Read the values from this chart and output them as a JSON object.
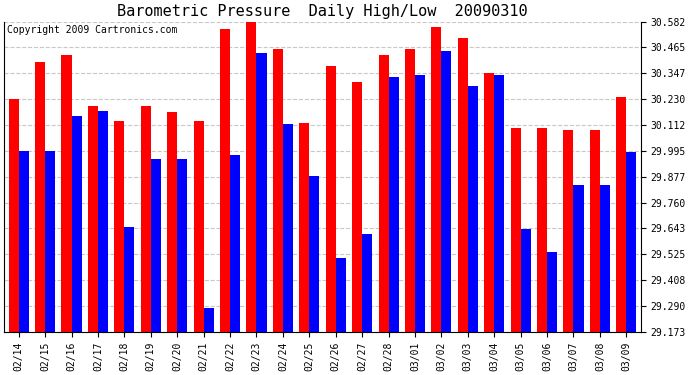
{
  "title": "Barometric Pressure  Daily High/Low  20090310",
  "copyright": "Copyright 2009 Cartronics.com",
  "dates": [
    "02/14",
    "02/15",
    "02/16",
    "02/17",
    "02/18",
    "02/19",
    "02/20",
    "02/21",
    "02/22",
    "02/23",
    "02/24",
    "02/25",
    "02/26",
    "02/27",
    "02/28",
    "03/01",
    "03/02",
    "03/03",
    "03/04",
    "03/05",
    "03/06",
    "03/07",
    "03/08",
    "03/09"
  ],
  "highs": [
    30.23,
    30.4,
    30.43,
    30.2,
    30.13,
    30.2,
    30.17,
    30.13,
    30.55,
    30.6,
    30.46,
    30.12,
    30.38,
    30.31,
    30.43,
    30.46,
    30.56,
    30.51,
    30.35,
    30.1,
    30.1,
    30.09,
    30.09,
    30.24
  ],
  "lows": [
    29.995,
    29.995,
    30.155,
    30.175,
    29.65,
    29.96,
    29.96,
    29.28,
    29.975,
    30.44,
    30.115,
    29.88,
    29.51,
    29.618,
    30.33,
    30.34,
    30.45,
    30.29,
    30.34,
    29.64,
    29.534,
    29.84,
    29.84,
    29.99
  ],
  "high_color": "#ff0000",
  "low_color": "#0000ff",
  "bg_color": "#ffffff",
  "plot_bg_color": "#ffffff",
  "grid_color": "#c8c8c8",
  "ymin": 29.173,
  "ymax": 30.582,
  "yticks": [
    29.173,
    29.29,
    29.408,
    29.525,
    29.643,
    29.76,
    29.877,
    29.995,
    30.112,
    30.23,
    30.347,
    30.465,
    30.582
  ],
  "title_fontsize": 11,
  "copyright_fontsize": 7,
  "tick_fontsize": 7,
  "bar_width": 0.38
}
